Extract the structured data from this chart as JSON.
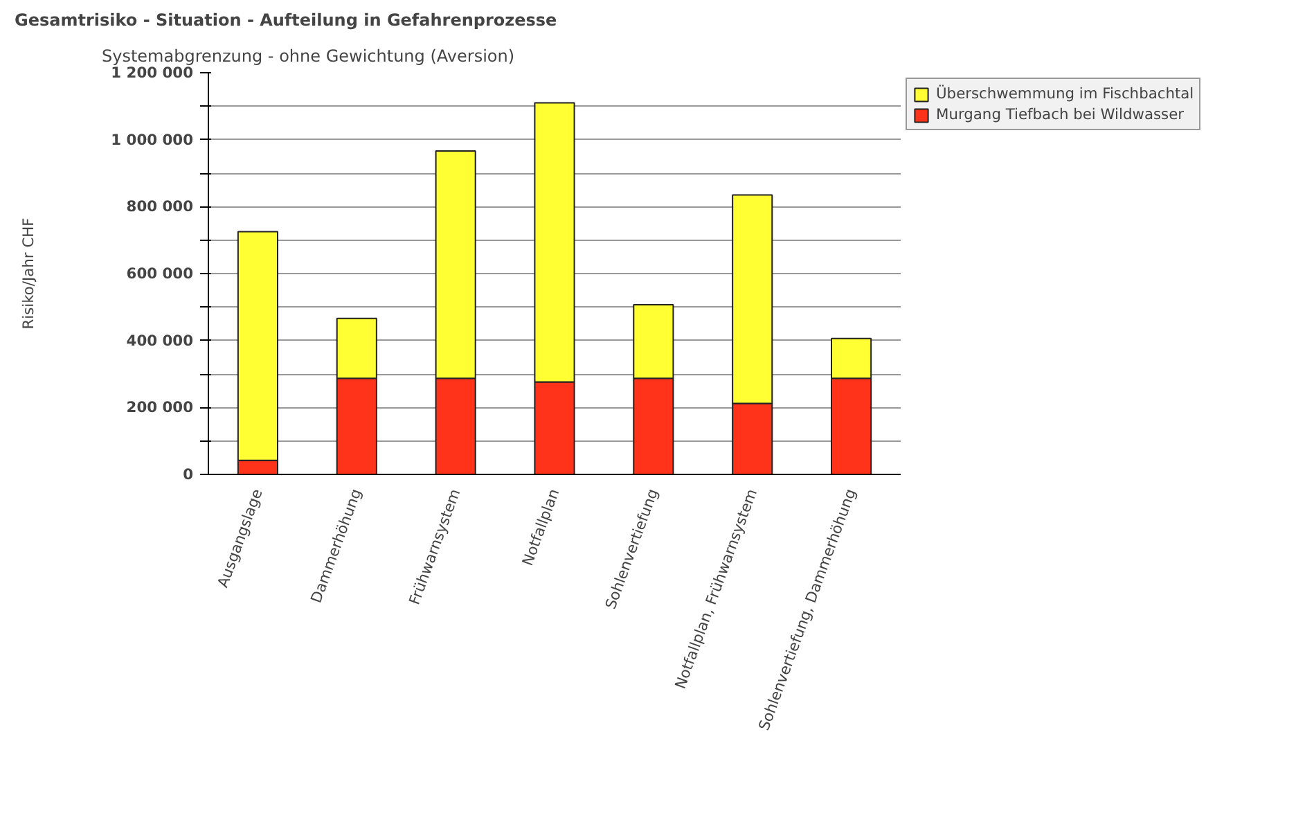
{
  "chart_data": {
    "type": "bar",
    "stacked": true,
    "title": "Gesamtrisiko - Situation - Aufteilung in Gefahrenprozesse",
    "subtitle": "Systemabgrenzung - ohne Gewichtung (Aversion)",
    "ylabel": "Risiko/Jahr CHF",
    "categories": [
      "Ausgangslage",
      "Dammerhöhung",
      "Frühwarnsystem",
      "Notfallplan",
      "Sohlenvertiefung",
      "Notfallplan, Frühwarnsystem",
      "Sohlenvertiefung, Dammerhöhung"
    ],
    "series": [
      {
        "name": "Murgang Tiefbach bei Wildwasser",
        "color": "#ff3319",
        "values": [
          42000,
          287000,
          287000,
          276000,
          287000,
          212000,
          287000
        ]
      },
      {
        "name": "Überschwemmung im Fischbachtal",
        "color": "#ffff33",
        "values": [
          683000,
          179000,
          679000,
          834000,
          220000,
          623000,
          119000
        ]
      }
    ],
    "ylim": [
      0,
      1200000
    ],
    "yticks": [
      {
        "value": 0,
        "label": "0"
      },
      {
        "value": 100000,
        "label": null
      },
      {
        "value": 200000,
        "label": "200 000"
      },
      {
        "value": 300000,
        "label": null
      },
      {
        "value": 400000,
        "label": "400 000"
      },
      {
        "value": 500000,
        "label": null
      },
      {
        "value": 600000,
        "label": "600 000"
      },
      {
        "value": 700000,
        "label": null
      },
      {
        "value": 800000,
        "label": "800 000"
      },
      {
        "value": 900000,
        "label": null
      },
      {
        "value": 1000000,
        "label": "1 000 000"
      },
      {
        "value": 1100000,
        "label": null
      },
      {
        "value": 1200000,
        "label": "1 200 000"
      }
    ],
    "grid": "y",
    "legend": "top right"
  }
}
